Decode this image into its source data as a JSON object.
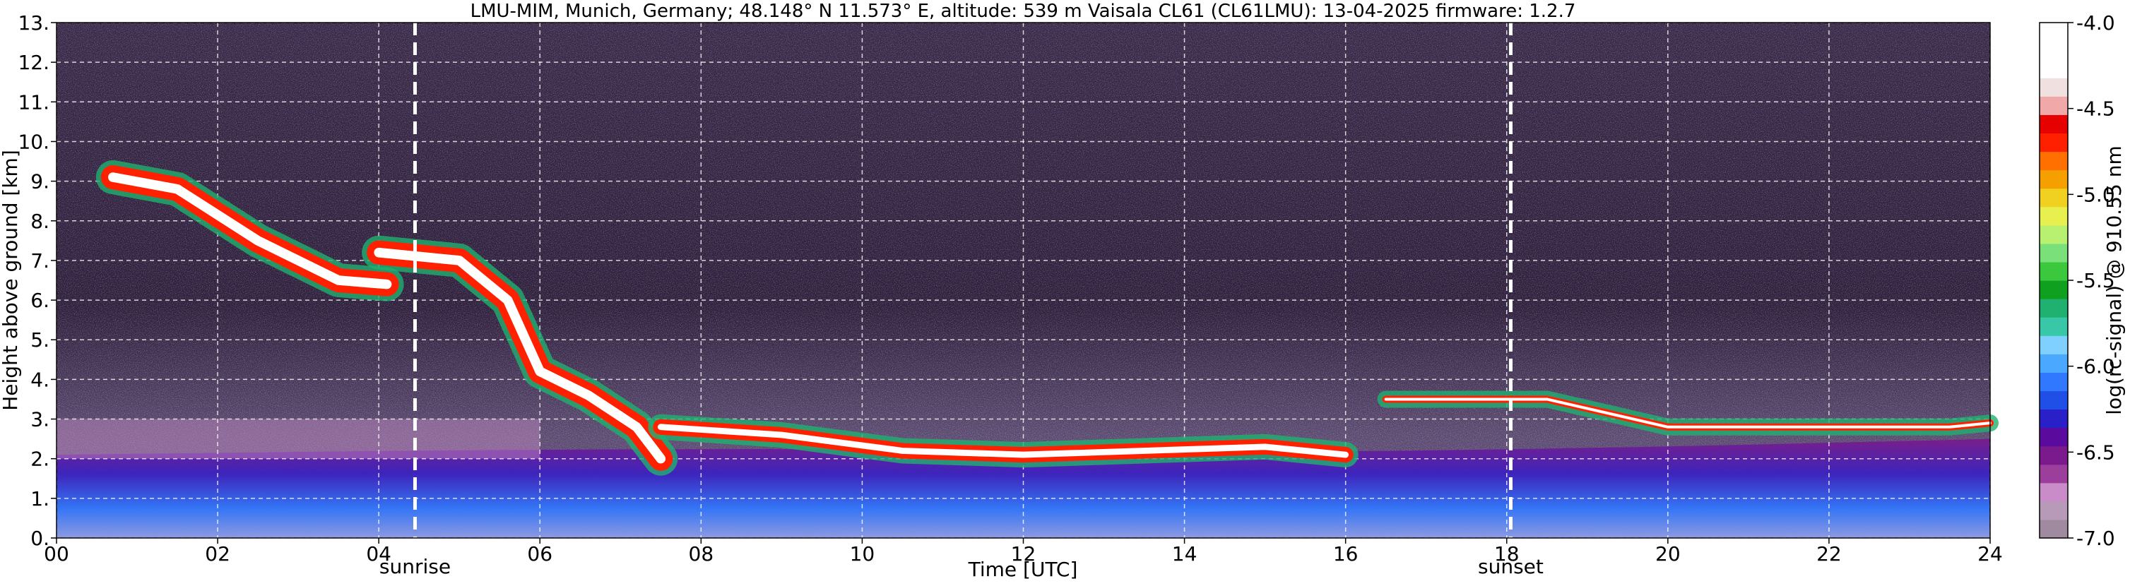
{
  "chart_data": {
    "type": "heatmap",
    "title": "LMU-MIM, Munich, Germany; 48.148° N 11.573° E, altitude: 539 m    Vaisala CL61 (CL61LMU): 13-04-2025    firmware: 1.2.7",
    "xlabel": "Time [UTC]",
    "ylabel": "Height above ground [km]",
    "xlim": [
      0,
      24
    ],
    "ylim": [
      0,
      13
    ],
    "x_ticks": [
      "00",
      "02",
      "04",
      "06",
      "08",
      "10",
      "12",
      "14",
      "16",
      "18",
      "20",
      "22",
      "24"
    ],
    "y_ticks": [
      "0.",
      "1.",
      "2.",
      "3.",
      "4.",
      "5.",
      "6.",
      "7.",
      "8.",
      "9.",
      "10.",
      "11.",
      "12.",
      "13."
    ],
    "grid": true,
    "colorbar": {
      "label": "log(rc-signal) @ 910.55 nm",
      "range": [
        -7.0,
        -4.0
      ],
      "ticks": [
        "-4.0",
        "-4.5",
        "-5.0",
        "-5.5",
        "-6.0",
        "-6.5",
        "-7.0"
      ],
      "colors": [
        "#a08aa0",
        "#b79ab7",
        "#c98cc9",
        "#9c3f9c",
        "#7a1a8c",
        "#5a0a9c",
        "#2a20c8",
        "#1f4fe6",
        "#2f78ff",
        "#4aa8ff",
        "#7fd0ff",
        "#38c8a8",
        "#20b070",
        "#10a020",
        "#3cc83c",
        "#7ae07a",
        "#b8f070",
        "#e8f050",
        "#f0d020",
        "#f5a000",
        "#ff7000",
        "#ff2000",
        "#e60000",
        "#f0a8a8",
        "#f0e0e0",
        "#ffffff",
        "#ffffff",
        "#ffffff"
      ]
    },
    "annotations": [
      {
        "x": 4.45,
        "label": "sunrise"
      },
      {
        "x": 18.05,
        "label": "sunset"
      }
    ],
    "cloud_layers": [
      {
        "kind": "cirrus",
        "x": [
          0.7,
          1.5,
          2.5,
          3.5,
          4.1
        ],
        "y": [
          9.1,
          8.8,
          7.5,
          6.5,
          6.4
        ]
      },
      {
        "kind": "cirrus",
        "x": [
          4.0,
          5.0,
          5.6,
          6.0,
          6.6,
          7.2,
          7.5
        ],
        "y": [
          7.2,
          7.0,
          6.0,
          4.2,
          3.6,
          2.8,
          2.0
        ]
      },
      {
        "kind": "boundary-layer",
        "x": [
          7.5,
          9.0,
          10.5,
          12.0,
          13.5,
          15.0,
          16.0
        ],
        "y": [
          2.8,
          2.6,
          2.2,
          2.1,
          2.2,
          2.3,
          2.1
        ]
      },
      {
        "kind": "cloud-top",
        "x": [
          16.5,
          17.5,
          18.5,
          20.0,
          22.0,
          23.5,
          24.0
        ],
        "y": [
          3.5,
          3.5,
          3.5,
          2.8,
          2.8,
          2.8,
          2.9
        ]
      }
    ]
  }
}
